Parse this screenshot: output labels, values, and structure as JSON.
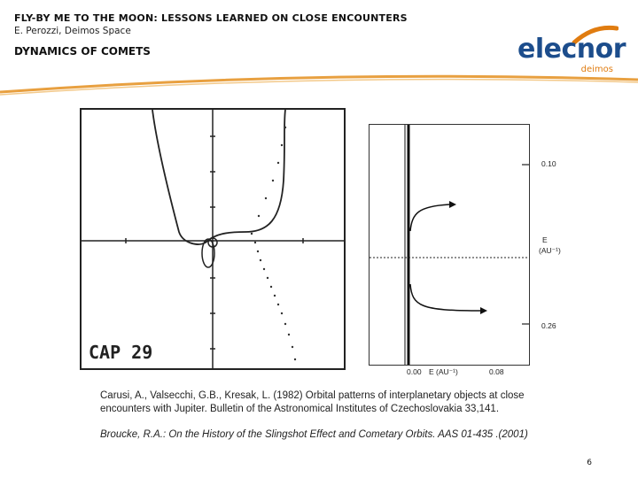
{
  "header": {
    "title": "FLY-BY ME TO THE MOON: LESSONS LEARNED ON CLOSE ENCOUNTERS",
    "subtitle": "E. Perozzi, Deimos Space",
    "section": "DYNAMICS OF COMETS"
  },
  "logo": {
    "main": "elecnor",
    "sub": "deimos",
    "primary_color": "#1c4d8c",
    "accent_color": "#e07c10"
  },
  "figure_left": {
    "label": "CAP 29"
  },
  "figure_right": {
    "tick_top": "0.10",
    "tick_bottom": "0.26",
    "y_label": "E",
    "y_unit": "(AU⁻¹)",
    "x_tick_left": "0.00",
    "x_label": "E (AU⁻¹)",
    "x_tick_right": "0.08"
  },
  "references": {
    "ref1": "Carusi, A., Valsecchi, G.B., Kresak, L. (1982) Orbital patterns of interplanetary objects at close encounters with Jupiter. Bulletin of the Astronomical Institutes of Czechoslovakia 33,141.",
    "ref2": "Broucke, R.A.: On the History of the Slingshot Effect and Cometary Orbits. AAS 01-435 .(2001)"
  },
  "page_number": "6"
}
